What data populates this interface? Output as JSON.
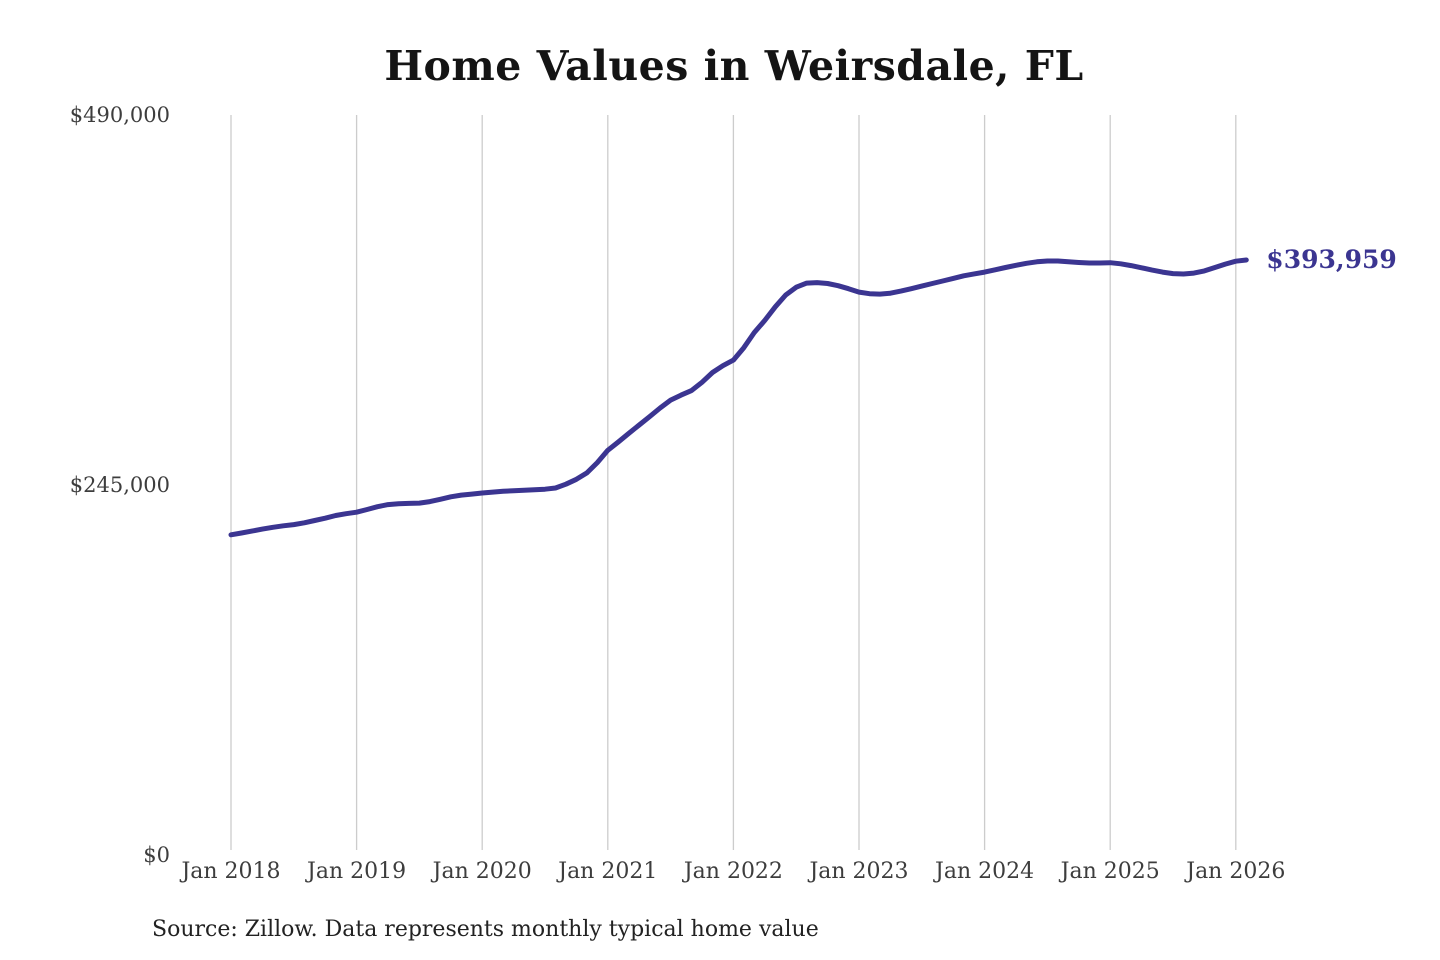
{
  "page": {
    "title": "Home Values in Weirsdale, FL",
    "source_note": "Source: Zillow. Data represents monthly typical home value"
  },
  "colors": {
    "line": "#3b3591",
    "end_label": "#3b3591",
    "grid": "#cccccc",
    "axis_text": "#3d3d3d",
    "title_text": "#141414",
    "background": "#ffffff"
  },
  "chart_data": {
    "type": "line",
    "title": "Home Values in Weirsdale, FL",
    "source": "Source: Zillow. Data represents monthly typical home value",
    "xlabel": "",
    "ylabel": "",
    "ylim": [
      0,
      490000
    ],
    "grid": "vertical-only",
    "legend": "none",
    "end_label": "$393,959",
    "end_value": 393959,
    "y_ticks": [
      {
        "label": "$0",
        "value": 0
      },
      {
        "label": "$245,000",
        "value": 245000
      },
      {
        "label": "$490,000",
        "value": 490000
      }
    ],
    "x_tick_labels": [
      "Jan 2018",
      "Jan 2019",
      "Jan 2020",
      "Jan 2021",
      "Jan 2022",
      "Jan 2023",
      "Jan 2024",
      "Jan 2025",
      "Jan 2026"
    ],
    "x": [
      "2018-01",
      "2018-02",
      "2018-03",
      "2018-04",
      "2018-05",
      "2018-06",
      "2018-07",
      "2018-08",
      "2018-09",
      "2018-10",
      "2018-11",
      "2018-12",
      "2019-01",
      "2019-02",
      "2019-03",
      "2019-04",
      "2019-05",
      "2019-06",
      "2019-07",
      "2019-08",
      "2019-09",
      "2019-10",
      "2019-11",
      "2019-12",
      "2020-01",
      "2020-02",
      "2020-03",
      "2020-04",
      "2020-05",
      "2020-06",
      "2020-07",
      "2020-08",
      "2020-09",
      "2020-10",
      "2020-11",
      "2020-12",
      "2021-01",
      "2021-02",
      "2021-03",
      "2021-04",
      "2021-05",
      "2021-06",
      "2021-07",
      "2021-08",
      "2021-09",
      "2021-10",
      "2021-11",
      "2021-12",
      "2022-01",
      "2022-02",
      "2022-03",
      "2022-04",
      "2022-05",
      "2022-06",
      "2022-07",
      "2022-08",
      "2022-09",
      "2022-10",
      "2022-11",
      "2022-12",
      "2023-01",
      "2023-02",
      "2023-03",
      "2023-04",
      "2023-05",
      "2023-06",
      "2023-07",
      "2023-08",
      "2023-09",
      "2023-10",
      "2023-11",
      "2023-12",
      "2024-01",
      "2024-02",
      "2024-03",
      "2024-04",
      "2024-05",
      "2024-06",
      "2024-07",
      "2024-08",
      "2024-09",
      "2024-10",
      "2024-11",
      "2024-12",
      "2025-01",
      "2025-02",
      "2025-03",
      "2025-04",
      "2025-05",
      "2025-06",
      "2025-07",
      "2025-08",
      "2025-09",
      "2025-10",
      "2025-11",
      "2025-12",
      "2026-01",
      "2026-02"
    ],
    "values": [
      212000,
      213200,
      214500,
      215800,
      217000,
      218000,
      218800,
      220000,
      221500,
      223000,
      224800,
      226000,
      227000,
      228800,
      230600,
      232000,
      232600,
      232800,
      233000,
      234000,
      235500,
      237200,
      238300,
      239000,
      239700,
      240300,
      240800,
      241200,
      241500,
      241800,
      242200,
      243000,
      245500,
      248800,
      253000,
      259800,
      268000,
      273500,
      279200,
      284700,
      290300,
      296000,
      301200,
      304500,
      307500,
      313000,
      319500,
      324000,
      327700,
      336000,
      346000,
      354000,
      363000,
      370800,
      376000,
      378700,
      379000,
      378400,
      377000,
      375000,
      372700,
      371700,
      371400,
      372000,
      373400,
      375000,
      376700,
      378400,
      380100,
      381800,
      383500,
      384800,
      386000,
      387500,
      389000,
      390500,
      391800,
      392800,
      393300,
      393300,
      392800,
      392300,
      392000,
      392000,
      392200,
      391500,
      390300,
      388800,
      387300,
      386000,
      385000,
      384700,
      385300,
      386800,
      389000,
      391300,
      393200,
      393959
    ]
  }
}
